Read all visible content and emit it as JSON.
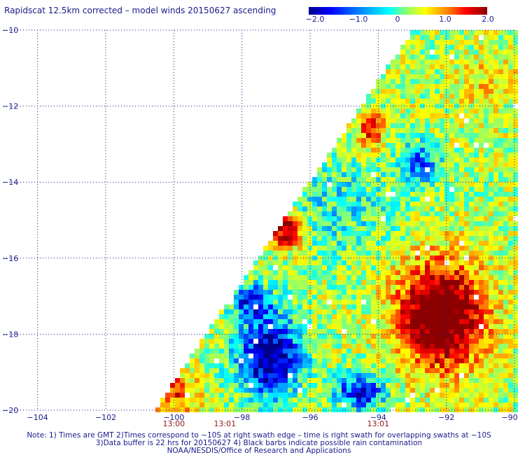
{
  "title": "Rapidscat 12.5km corrected – model winds 20150627 ascending",
  "colorbar": {
    "labels": [
      "−2.0",
      "−1.0",
      "0",
      "1.0",
      "2.0"
    ],
    "values": [
      -2.0,
      -1.0,
      0,
      1.0,
      2.0
    ],
    "colors": [
      "#00008b",
      "#0000ff",
      "#0080ff",
      "#00ffff",
      "#9cff60",
      "#ffff00",
      "#ff8000",
      "#ff0000",
      "#8b0000"
    ]
  },
  "map": {
    "lon_range": [
      -105,
      -90
    ],
    "lat_range": [
      -20,
      -10
    ],
    "lon_ticks": [
      -104,
      -102,
      -100,
      -98,
      -96,
      -94,
      -92,
      -90
    ],
    "lon_tick_labels": [
      "−104",
      "−102",
      "−100",
      "−98",
      "−96",
      "−94",
      "−92",
      "−90"
    ],
    "lat_ticks": [
      -10,
      -12,
      -14,
      -16,
      -18,
      -20
    ],
    "lat_tick_labels": [
      "−10",
      "−12",
      "−14",
      "−16",
      "−18",
      "−20"
    ],
    "grid": "dotted",
    "time_labels": [
      {
        "text": "13:00",
        "lon": -100.0
      },
      {
        "text": "13:01",
        "lon": -98.5
      },
      {
        "text": "13:01",
        "lon": -94.0
      }
    ]
  },
  "footer": {
    "line1": "Note: 1) Times are GMT 2)Times correspond to ~10S at right swath edge – time is right swath for overlapping swaths at ~10S",
    "line2": "3)Data buffer is 22 hrs for 20150627 4) Black barbs indicate possible rain contamination",
    "line3": "NOAA/NESDIS/Office of Research and Applications"
  }
}
